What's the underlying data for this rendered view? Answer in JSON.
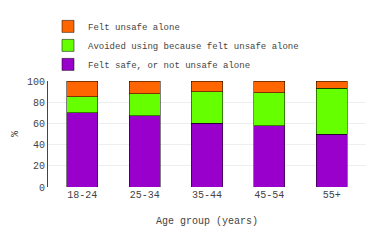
{
  "chart_data": {
    "type": "bar",
    "stacked": true,
    "xlabel": "Age group (years)",
    "ylabel": "%",
    "categories": [
      "18-24",
      "25-34",
      "35-44",
      "45-54",
      "55+"
    ],
    "series": [
      {
        "name": "Felt safe, or not unsafe alone",
        "color": "#9900cc",
        "values": [
          70,
          67,
          60,
          58,
          50
        ]
      },
      {
        "name": "Avoided using because felt unsafe alone",
        "color": "#66ff00",
        "values": [
          15,
          21,
          30,
          31,
          43
        ]
      },
      {
        "name": "Felt unsafe alone",
        "color": "#ff6600",
        "values": [
          15,
          12,
          10,
          11,
          7
        ]
      }
    ],
    "ylim": [
      0,
      100
    ],
    "yticks": [
      0,
      20,
      40,
      60,
      80,
      100
    ],
    "grid": true,
    "legend": "upper left"
  }
}
